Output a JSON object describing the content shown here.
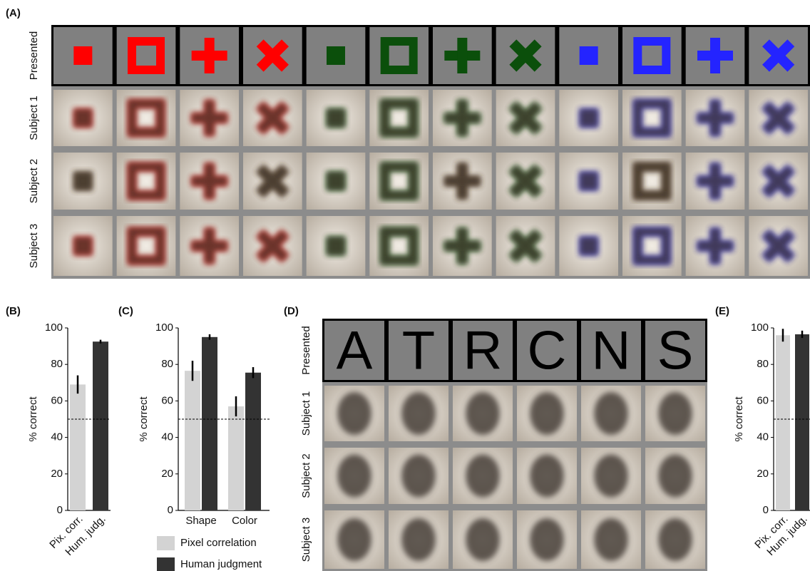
{
  "panel_a": {
    "label": "(A)",
    "row_labels": [
      "Presented",
      "Subject 1",
      "Subject 2",
      "Subject 3"
    ]
  },
  "panel_d": {
    "label": "(D)",
    "row_labels": [
      "Presented",
      "Subject 1",
      "Subject 2",
      "Subject 3"
    ],
    "letters": [
      "A",
      "T",
      "R",
      "C",
      "N",
      "S"
    ]
  },
  "chart_data": [
    {
      "type": "bar",
      "panel_label": "(B)",
      "ylabel": "% correct",
      "categories": [
        "Pix. corr.",
        "Hum. judg."
      ],
      "values": [
        69,
        92.5
      ],
      "errors": [
        5,
        1
      ],
      "colors": [
        "#d3d3d3",
        "#333333"
      ],
      "chance": 50,
      "ylim": [
        0,
        100
      ],
      "yticks": [
        0,
        20,
        40,
        60,
        80,
        100
      ]
    },
    {
      "type": "bar",
      "panel_label": "(C)",
      "ylabel": "% correct",
      "categories": [
        "Shape",
        "Color"
      ],
      "series": [
        {
          "name": "Pixel correlation",
          "color": "#d3d3d3",
          "values": [
            76.5,
            57
          ],
          "errors": [
            5.5,
            5.5
          ]
        },
        {
          "name": "Human judgment",
          "color": "#333333",
          "values": [
            95,
            75.5
          ],
          "errors": [
            1.5,
            3
          ]
        }
      ],
      "chance": 50,
      "ylim": [
        0,
        100
      ],
      "yticks": [
        0,
        20,
        40,
        60,
        80,
        100
      ]
    },
    {
      "type": "bar",
      "panel_label": "(E)",
      "ylabel": "% correct",
      "categories": [
        "Pix. corr.",
        "Hum. judg."
      ],
      "values": [
        96,
        96.5
      ],
      "errors": [
        3.5,
        2
      ],
      "colors": [
        "#d3d3d3",
        "#333333"
      ],
      "chance": 50,
      "ylim": [
        0,
        100
      ],
      "yticks": [
        0,
        20,
        40,
        60,
        80,
        100
      ]
    }
  ]
}
